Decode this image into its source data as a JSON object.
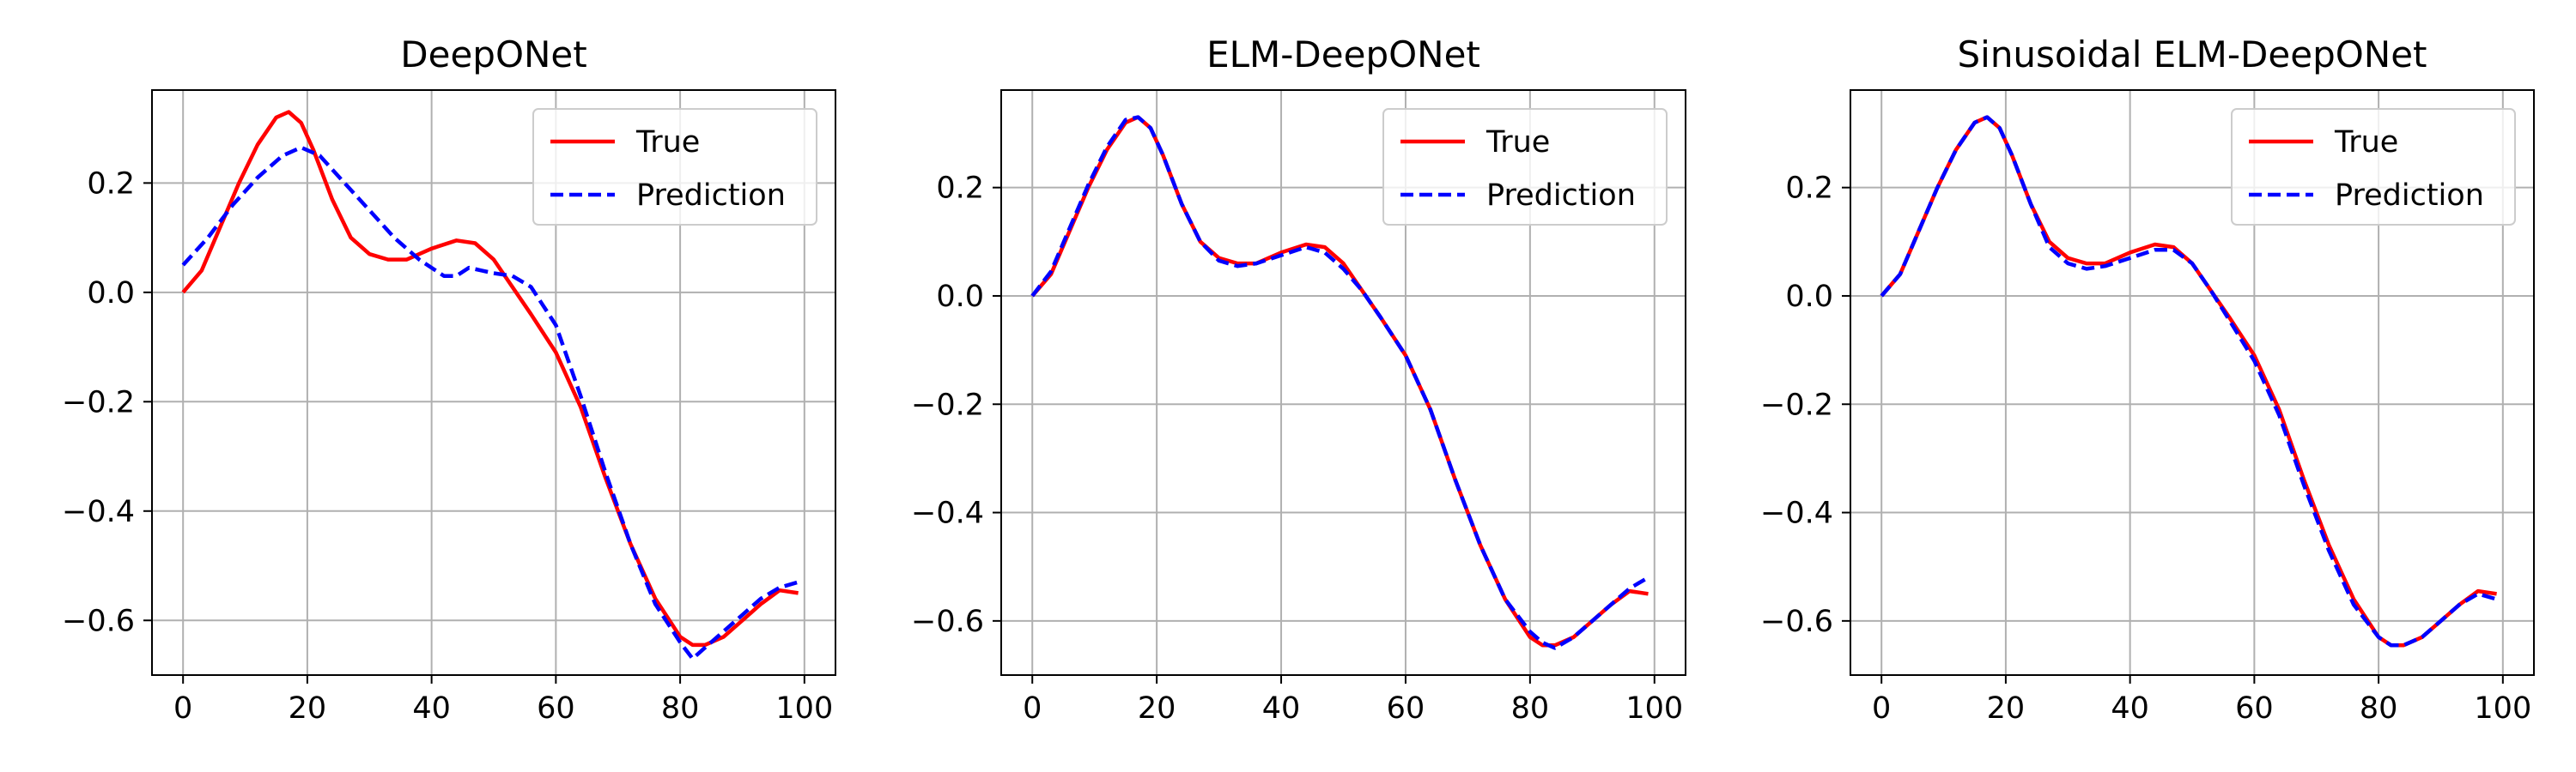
{
  "chart_data": [
    {
      "type": "line",
      "title": "DeepONet",
      "xlabel": "",
      "ylabel": "",
      "xlim": [
        -5,
        105
      ],
      "ylim": [
        -0.7,
        0.37
      ],
      "xticks": [
        0,
        20,
        40,
        60,
        80,
        100
      ],
      "yticks": [
        -0.6,
        -0.4,
        -0.2,
        0.0,
        0.2
      ],
      "xtick_labels": [
        "0",
        "20",
        "40",
        "60",
        "80",
        "100"
      ],
      "ytick_labels": [
        "−0.6",
        "−0.4",
        "−0.2",
        "0.0",
        "0.2"
      ],
      "grid": true,
      "legend_position": "top-right",
      "series": [
        {
          "name": "True",
          "color": "#ff0000",
          "style": "solid",
          "x": [
            0,
            3,
            6,
            9,
            12,
            15,
            17,
            19,
            21,
            24,
            27,
            30,
            33,
            36,
            40,
            44,
            47,
            50,
            53,
            56,
            60,
            64,
            68,
            72,
            76,
            80,
            82,
            84,
            87,
            90,
            93,
            96,
            99
          ],
          "y": [
            0.0,
            0.04,
            0.12,
            0.2,
            0.27,
            0.32,
            0.33,
            0.31,
            0.26,
            0.17,
            0.1,
            0.07,
            0.06,
            0.06,
            0.08,
            0.095,
            0.09,
            0.06,
            0.01,
            -0.04,
            -0.11,
            -0.21,
            -0.34,
            -0.46,
            -0.56,
            -0.63,
            -0.645,
            -0.645,
            -0.63,
            -0.6,
            -0.57,
            -0.545,
            -0.55
          ]
        },
        {
          "name": "Prediction",
          "color": "#0000ff",
          "style": "dashed",
          "x": [
            0,
            4,
            8,
            12,
            16,
            19,
            22,
            26,
            30,
            34,
            38,
            42,
            44,
            46,
            48,
            50,
            53,
            56,
            60,
            64,
            68,
            72,
            76,
            80,
            82,
            84,
            87,
            90,
            93,
            96,
            99
          ],
          "y": [
            0.05,
            0.1,
            0.16,
            0.21,
            0.25,
            0.265,
            0.25,
            0.2,
            0.15,
            0.1,
            0.06,
            0.03,
            0.03,
            0.045,
            0.04,
            0.035,
            0.03,
            0.01,
            -0.06,
            -0.19,
            -0.33,
            -0.46,
            -0.57,
            -0.64,
            -0.67,
            -0.65,
            -0.62,
            -0.59,
            -0.56,
            -0.54,
            -0.53
          ]
        }
      ]
    },
    {
      "type": "line",
      "title": "ELM-DeepONet",
      "xlabel": "",
      "ylabel": "",
      "xlim": [
        -5,
        105
      ],
      "ylim": [
        -0.7,
        0.38
      ],
      "xticks": [
        0,
        20,
        40,
        60,
        80,
        100
      ],
      "yticks": [
        -0.6,
        -0.4,
        -0.2,
        0.0,
        0.2
      ],
      "xtick_labels": [
        "0",
        "20",
        "40",
        "60",
        "80",
        "100"
      ],
      "ytick_labels": [
        "−0.6",
        "−0.4",
        "−0.2",
        "0.0",
        "0.2"
      ],
      "grid": true,
      "legend_position": "top-right",
      "series": [
        {
          "name": "True",
          "color": "#ff0000",
          "style": "solid",
          "x": [
            0,
            3,
            6,
            9,
            12,
            15,
            17,
            19,
            21,
            24,
            27,
            30,
            33,
            36,
            40,
            44,
            47,
            50,
            53,
            56,
            60,
            64,
            68,
            72,
            76,
            80,
            82,
            84,
            87,
            90,
            93,
            96,
            99
          ],
          "y": [
            0.0,
            0.04,
            0.12,
            0.2,
            0.27,
            0.32,
            0.33,
            0.31,
            0.26,
            0.17,
            0.1,
            0.07,
            0.06,
            0.06,
            0.08,
            0.095,
            0.09,
            0.06,
            0.01,
            -0.04,
            -0.11,
            -0.21,
            -0.34,
            -0.46,
            -0.56,
            -0.63,
            -0.645,
            -0.645,
            -0.63,
            -0.6,
            -0.57,
            -0.545,
            -0.55
          ]
        },
        {
          "name": "Prediction",
          "color": "#0000ff",
          "style": "dashed",
          "x": [
            0,
            3,
            6,
            9,
            12,
            15,
            17,
            19,
            21,
            24,
            27,
            30,
            33,
            36,
            40,
            44,
            47,
            50,
            53,
            56,
            60,
            64,
            68,
            72,
            76,
            80,
            82,
            84,
            87,
            90,
            93,
            96,
            99
          ],
          "y": [
            0.0,
            0.045,
            0.125,
            0.205,
            0.275,
            0.325,
            0.33,
            0.31,
            0.26,
            0.17,
            0.1,
            0.065,
            0.055,
            0.06,
            0.075,
            0.09,
            0.08,
            0.05,
            0.01,
            -0.04,
            -0.11,
            -0.21,
            -0.34,
            -0.46,
            -0.56,
            -0.62,
            -0.64,
            -0.65,
            -0.63,
            -0.6,
            -0.57,
            -0.54,
            -0.52
          ]
        }
      ]
    },
    {
      "type": "line",
      "title": "Sinusoidal ELM-DeepONet",
      "xlabel": "",
      "ylabel": "",
      "xlim": [
        -5,
        105
      ],
      "ylim": [
        -0.7,
        0.38
      ],
      "xticks": [
        0,
        20,
        40,
        60,
        80,
        100
      ],
      "yticks": [
        -0.6,
        -0.4,
        -0.2,
        0.0,
        0.2
      ],
      "xtick_labels": [
        "0",
        "20",
        "40",
        "60",
        "80",
        "100"
      ],
      "ytick_labels": [
        "−0.6",
        "−0.4",
        "−0.2",
        "0.0",
        "0.2"
      ],
      "grid": true,
      "legend_position": "top-right",
      "series": [
        {
          "name": "True",
          "color": "#ff0000",
          "style": "solid",
          "x": [
            0,
            3,
            6,
            9,
            12,
            15,
            17,
            19,
            21,
            24,
            27,
            30,
            33,
            36,
            40,
            44,
            47,
            50,
            53,
            56,
            60,
            64,
            68,
            72,
            76,
            80,
            82,
            84,
            87,
            90,
            93,
            96,
            99
          ],
          "y": [
            0.0,
            0.04,
            0.12,
            0.2,
            0.27,
            0.32,
            0.33,
            0.31,
            0.26,
            0.17,
            0.1,
            0.07,
            0.06,
            0.06,
            0.08,
            0.095,
            0.09,
            0.06,
            0.01,
            -0.04,
            -0.11,
            -0.21,
            -0.34,
            -0.46,
            -0.56,
            -0.63,
            -0.645,
            -0.645,
            -0.63,
            -0.6,
            -0.57,
            -0.545,
            -0.55
          ]
        },
        {
          "name": "Prediction",
          "color": "#0000ff",
          "style": "dashed",
          "x": [
            0,
            3,
            6,
            9,
            12,
            15,
            17,
            19,
            21,
            24,
            27,
            30,
            33,
            36,
            40,
            44,
            47,
            50,
            53,
            56,
            60,
            64,
            68,
            72,
            76,
            80,
            82,
            84,
            87,
            90,
            93,
            96,
            99
          ],
          "y": [
            0.0,
            0.04,
            0.12,
            0.2,
            0.27,
            0.32,
            0.33,
            0.31,
            0.26,
            0.17,
            0.09,
            0.06,
            0.05,
            0.055,
            0.07,
            0.085,
            0.085,
            0.06,
            0.01,
            -0.045,
            -0.12,
            -0.22,
            -0.35,
            -0.47,
            -0.57,
            -0.63,
            -0.645,
            -0.645,
            -0.63,
            -0.6,
            -0.57,
            -0.55,
            -0.56
          ]
        }
      ]
    }
  ]
}
